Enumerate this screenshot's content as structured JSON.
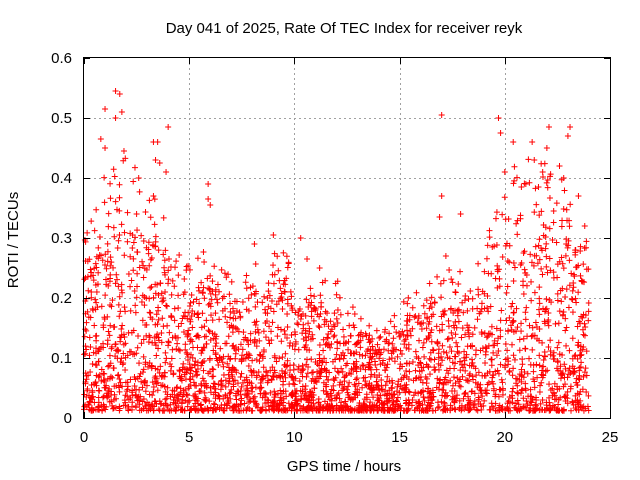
{
  "chart_data": {
    "type": "scatter",
    "title": "Day 041 of 2025, Rate Of TEC Index for receiver reyk",
    "xlabel": "GPS time / hours",
    "ylabel": "ROTI / TECUs",
    "xlim": [
      0,
      25
    ],
    "ylim": [
      0,
      0.6
    ],
    "x_ticks": [
      "0",
      "5",
      "10",
      "15",
      "20",
      "25"
    ],
    "x_tick_values": [
      0,
      5,
      10,
      15,
      20,
      25
    ],
    "y_ticks": [
      "0",
      "0.1",
      "0.2",
      "0.3",
      "0.4",
      "0.5",
      "0.6"
    ],
    "y_tick_values": [
      0,
      0.1,
      0.2,
      0.3,
      0.4,
      0.5,
      0.6
    ],
    "grid": true,
    "marker": "plus",
    "color": "#ff0000",
    "series": [
      {
        "name": "ROTI",
        "envelope_hours": [
          0,
          1,
          2,
          3,
          4,
          5,
          6,
          7,
          8,
          9,
          10,
          11,
          12,
          13,
          14,
          15,
          16,
          17,
          18,
          19,
          20,
          21,
          22,
          23,
          24
        ],
        "typical_max": [
          0.22,
          0.28,
          0.3,
          0.28,
          0.22,
          0.18,
          0.2,
          0.16,
          0.18,
          0.2,
          0.18,
          0.16,
          0.16,
          0.12,
          0.1,
          0.13,
          0.15,
          0.17,
          0.18,
          0.2,
          0.28,
          0.3,
          0.3,
          0.28,
          0.2
        ],
        "outliers": [
          {
            "x": 1.5,
            "y": 0.545
          },
          {
            "x": 1.7,
            "y": 0.54
          },
          {
            "x": 1.0,
            "y": 0.515
          },
          {
            "x": 1.5,
            "y": 0.5
          },
          {
            "x": 1.8,
            "y": 0.51
          },
          {
            "x": 0.8,
            "y": 0.465
          },
          {
            "x": 1.0,
            "y": 0.45
          },
          {
            "x": 1.9,
            "y": 0.445
          },
          {
            "x": 3.3,
            "y": 0.46
          },
          {
            "x": 3.5,
            "y": 0.46
          },
          {
            "x": 3.4,
            "y": 0.43
          },
          {
            "x": 3.6,
            "y": 0.425
          },
          {
            "x": 4.0,
            "y": 0.485
          },
          {
            "x": 3.9,
            "y": 0.41
          },
          {
            "x": 2.6,
            "y": 0.4
          },
          {
            "x": 2.5,
            "y": 0.34
          },
          {
            "x": 3.3,
            "y": 0.37
          },
          {
            "x": 5.9,
            "y": 0.39
          },
          {
            "x": 5.9,
            "y": 0.365
          },
          {
            "x": 6.0,
            "y": 0.355
          },
          {
            "x": 9.0,
            "y": 0.305
          },
          {
            "x": 8.1,
            "y": 0.29
          },
          {
            "x": 10.3,
            "y": 0.3
          },
          {
            "x": 10.6,
            "y": 0.265
          },
          {
            "x": 11.2,
            "y": 0.25
          },
          {
            "x": 17.0,
            "y": 0.505
          },
          {
            "x": 17.0,
            "y": 0.37
          },
          {
            "x": 16.9,
            "y": 0.335
          },
          {
            "x": 17.9,
            "y": 0.34
          },
          {
            "x": 17.2,
            "y": 0.27
          },
          {
            "x": 19.7,
            "y": 0.5
          },
          {
            "x": 19.8,
            "y": 0.475
          },
          {
            "x": 20.4,
            "y": 0.46
          },
          {
            "x": 21.3,
            "y": 0.46
          },
          {
            "x": 21.4,
            "y": 0.43
          },
          {
            "x": 22.1,
            "y": 0.485
          },
          {
            "x": 22.0,
            "y": 0.45
          },
          {
            "x": 23.1,
            "y": 0.485
          },
          {
            "x": 23.0,
            "y": 0.47
          },
          {
            "x": 21.8,
            "y": 0.41
          },
          {
            "x": 22.6,
            "y": 0.42
          },
          {
            "x": 20.0,
            "y": 0.41
          },
          {
            "x": 23.5,
            "y": 0.37
          },
          {
            "x": 23.8,
            "y": 0.32
          },
          {
            "x": 21.0,
            "y": 0.39
          },
          {
            "x": 21.6,
            "y": 0.385
          },
          {
            "x": 22.8,
            "y": 0.4
          }
        ]
      }
    ]
  }
}
